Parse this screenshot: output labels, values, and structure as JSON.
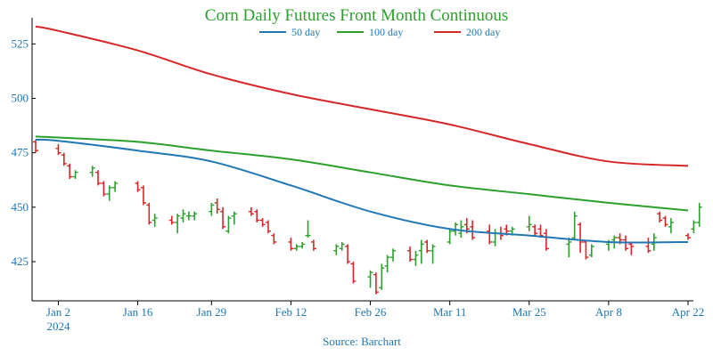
{
  "chart_data": {
    "type": "ohlc",
    "title": "Corn Daily Futures Front Month Continuous",
    "source": "Source: Barchart",
    "x_ticks": [
      {
        "date": "2024-01-02",
        "label": "Jan 2",
        "sublabel": "2024"
      },
      {
        "date": "2024-01-16",
        "label": "Jan 16"
      },
      {
        "date": "2024-01-29",
        "label": "Jan 29"
      },
      {
        "date": "2024-02-12",
        "label": "Feb 12"
      },
      {
        "date": "2024-02-26",
        "label": "Feb 26"
      },
      {
        "date": "2024-03-11",
        "label": "Mar 11"
      },
      {
        "date": "2024-03-25",
        "label": "Mar 25"
      },
      {
        "date": "2024-04-08",
        "label": "Apr 8"
      },
      {
        "date": "2024-04-22",
        "label": "Apr 22"
      }
    ],
    "x_range": [
      "2023-12-29",
      "2024-04-22"
    ],
    "ylim": [
      407,
      537
    ],
    "y_ticks": [
      425,
      450,
      475,
      500,
      525
    ],
    "legend": {
      "placement": "top-center"
    },
    "colors": {
      "title": "#2ca02c",
      "axis_text": "#1f77b4",
      "up": "#2ca02c",
      "down": "#d62728"
    },
    "series": [
      {
        "name": "50 day",
        "color": "#1f77b4",
        "points": [
          [
            "2023-12-29",
            481
          ],
          [
            "2024-01-02",
            480.5
          ],
          [
            "2024-01-16",
            476
          ],
          [
            "2024-01-29",
            471
          ],
          [
            "2024-02-12",
            460
          ],
          [
            "2024-02-26",
            448
          ],
          [
            "2024-03-11",
            440
          ],
          [
            "2024-03-25",
            437
          ],
          [
            "2024-04-08",
            434
          ],
          [
            "2024-04-22",
            434
          ]
        ]
      },
      {
        "name": "100 day",
        "color": "#2ca02c",
        "points": [
          [
            "2023-12-29",
            482.5
          ],
          [
            "2024-01-02",
            482
          ],
          [
            "2024-01-16",
            480
          ],
          [
            "2024-01-29",
            476
          ],
          [
            "2024-02-12",
            472
          ],
          [
            "2024-02-26",
            466
          ],
          [
            "2024-03-11",
            460
          ],
          [
            "2024-03-25",
            456
          ],
          [
            "2024-04-08",
            452
          ],
          [
            "2024-04-22",
            448.5
          ]
        ]
      },
      {
        "name": "200 day",
        "color": "#d62728",
        "points": [
          [
            "2023-12-29",
            533
          ],
          [
            "2024-01-02",
            531
          ],
          [
            "2024-01-16",
            522
          ],
          [
            "2024-01-29",
            511
          ],
          [
            "2024-02-12",
            502
          ],
          [
            "2024-02-26",
            495
          ],
          [
            "2024-03-11",
            488
          ],
          [
            "2024-03-25",
            479
          ],
          [
            "2024-04-08",
            471
          ],
          [
            "2024-04-22",
            469
          ]
        ]
      }
    ],
    "bars": [
      [
        "2023-12-29",
        480,
        481,
        475,
        476
      ],
      [
        "2024-01-02",
        477,
        479,
        474,
        475
      ],
      [
        "2024-01-03",
        474,
        475,
        469,
        470
      ],
      [
        "2024-01-04",
        469,
        470,
        463,
        464
      ],
      [
        "2024-01-05",
        464,
        467,
        463,
        466
      ],
      [
        "2024-01-08",
        466,
        469,
        464,
        468
      ],
      [
        "2024-01-09",
        466,
        467,
        460,
        461
      ],
      [
        "2024-01-10",
        461,
        462,
        455,
        456
      ],
      [
        "2024-01-11",
        456,
        460,
        453,
        459
      ],
      [
        "2024-01-12",
        459,
        462,
        457,
        461
      ],
      [
        "2024-01-16",
        461,
        462,
        457,
        458
      ],
      [
        "2024-01-17",
        459,
        460,
        451,
        452
      ],
      [
        "2024-01-18",
        451,
        452,
        442,
        443
      ],
      [
        "2024-01-19",
        444,
        447,
        441,
        445
      ],
      [
        "2024-01-22",
        444,
        446,
        442,
        443
      ],
      [
        "2024-01-23",
        443,
        447,
        438,
        446
      ],
      [
        "2024-01-24",
        445,
        449,
        443,
        447
      ],
      [
        "2024-01-25",
        446,
        448,
        444,
        446
      ],
      [
        "2024-01-26",
        446,
        448,
        444,
        447
      ],
      [
        "2024-01-29",
        448,
        452,
        446,
        451
      ],
      [
        "2024-01-30",
        452,
        454,
        447,
        449
      ],
      [
        "2024-01-31",
        448,
        450,
        440,
        441
      ],
      [
        "2024-02-01",
        439,
        446,
        438,
        445
      ],
      [
        "2024-02-02",
        446,
        448,
        442,
        447
      ],
      [
        "2024-02-05",
        448,
        450,
        446,
        447
      ],
      [
        "2024-02-06",
        448,
        449,
        443,
        444
      ],
      [
        "2024-02-07",
        444,
        445,
        441,
        442
      ],
      [
        "2024-02-08",
        443,
        444,
        438,
        439
      ],
      [
        "2024-02-09",
        437,
        438,
        433,
        434
      ],
      [
        "2024-02-12",
        434,
        436,
        430,
        431
      ],
      [
        "2024-02-13",
        431,
        433,
        430,
        432
      ],
      [
        "2024-02-14",
        432,
        434,
        431,
        433
      ],
      [
        "2024-02-15",
        437,
        444,
        436,
        437
      ],
      [
        "2024-02-16",
        434,
        435,
        430,
        431
      ],
      [
        "2024-02-20",
        430,
        433,
        428,
        432
      ],
      [
        "2024-02-21",
        431,
        434,
        430,
        433
      ],
      [
        "2024-02-22",
        432,
        433,
        424,
        425
      ],
      [
        "2024-02-23",
        424,
        425,
        415,
        416
      ],
      [
        "2024-02-26",
        418,
        421,
        413,
        420
      ],
      [
        "2024-02-27",
        419,
        420,
        410,
        411
      ],
      [
        "2024-02-28",
        413,
        424,
        412,
        422
      ],
      [
        "2024-02-29",
        423,
        428,
        420,
        427
      ],
      [
        "2024-03-01",
        427,
        431,
        425,
        430
      ],
      [
        "2024-03-04",
        430,
        432,
        425,
        426
      ],
      [
        "2024-03-05",
        426,
        430,
        423,
        428
      ],
      [
        "2024-03-06",
        430,
        435,
        424,
        433
      ],
      [
        "2024-03-07",
        434,
        435,
        429,
        430
      ],
      [
        "2024-03-08",
        430,
        433,
        424,
        432
      ],
      [
        "2024-03-11",
        434,
        440,
        433,
        439
      ],
      [
        "2024-03-12",
        439,
        443,
        437,
        442
      ],
      [
        "2024-03-13",
        438,
        444,
        436,
        441
      ],
      [
        "2024-03-14",
        442,
        445,
        438,
        440
      ],
      [
        "2024-03-15",
        441,
        444,
        435,
        436
      ],
      [
        "2024-03-18",
        439,
        442,
        433,
        434
      ],
      [
        "2024-03-19",
        434,
        440,
        432,
        438
      ],
      [
        "2024-03-20",
        438,
        441,
        435,
        437
      ],
      [
        "2024-03-21",
        440,
        442,
        437,
        439
      ],
      [
        "2024-03-22",
        439,
        441,
        437,
        440
      ],
      [
        "2024-03-25",
        441,
        446,
        439,
        442
      ],
      [
        "2024-03-26",
        441,
        442,
        437,
        438
      ],
      [
        "2024-03-27",
        440,
        442,
        436,
        437
      ],
      [
        "2024-03-28",
        438,
        440,
        430,
        431
      ],
      [
        "2024-04-01",
        433,
        436,
        427,
        434
      ],
      [
        "2024-04-02",
        436,
        448,
        435,
        446
      ],
      [
        "2024-04-03",
        442,
        443,
        429,
        434
      ],
      [
        "2024-04-04",
        434,
        435,
        426,
        427
      ],
      [
        "2024-04-05",
        428,
        433,
        427,
        432
      ],
      [
        "2024-04-08",
        433,
        435,
        430,
        434
      ],
      [
        "2024-04-09",
        435,
        437,
        431,
        436
      ],
      [
        "2024-04-10",
        436,
        438,
        433,
        435
      ],
      [
        "2024-04-11",
        435,
        437,
        430,
        431
      ],
      [
        "2024-04-12",
        433,
        434,
        428,
        432
      ],
      [
        "2024-04-15",
        432,
        436,
        429,
        430
      ],
      [
        "2024-04-16",
        433,
        438,
        430,
        436
      ],
      [
        "2024-04-17",
        447,
        448,
        443,
        444
      ],
      [
        "2024-04-18",
        445,
        446,
        441,
        442
      ],
      [
        "2024-04-19",
        441,
        445,
        438,
        443
      ],
      [
        "2024-04-22",
        437,
        438,
        435,
        436
      ],
      [
        "2024-04-23",
        440,
        444,
        438,
        443
      ],
      [
        "2024-04-24",
        443,
        452,
        441,
        450
      ]
    ]
  }
}
